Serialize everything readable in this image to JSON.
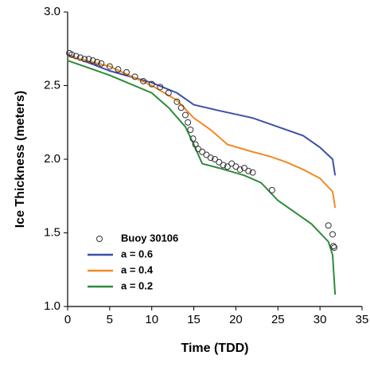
{
  "chart_data": {
    "type": "line",
    "x_label": "Time (TDD)",
    "y_label": "Ice Thickness (meters)",
    "xlim": [
      0,
      35
    ],
    "ylim": [
      1.0,
      3.0
    ],
    "xticks": [
      0,
      5,
      10,
      15,
      20,
      25,
      30,
      35
    ],
    "yticks": [
      {
        "value": 1.0,
        "label": "1.0"
      },
      {
        "value": 1.5,
        "label": "1.5"
      },
      {
        "value": 2.0,
        "label": "2.0"
      },
      {
        "value": 2.5,
        "label": "2.5"
      },
      {
        "value": 3.0,
        "label": "3.0"
      }
    ],
    "legend": "lower left",
    "series": [
      {
        "name": "Buoy 30106",
        "style": "scatter",
        "color": "#333333",
        "x": [
          0.2,
          0.5,
          1,
          1.5,
          2,
          2.5,
          3,
          3.5,
          4,
          5,
          6,
          7,
          8,
          9,
          10,
          11,
          12,
          13,
          13.5,
          14,
          14.3,
          14.6,
          14.9,
          15.2,
          15.5,
          16,
          16.5,
          17,
          17.5,
          18,
          18.5,
          19,
          19.5,
          20,
          20.5,
          21,
          21.5,
          22,
          24.3,
          31,
          31.5,
          31.6,
          31.7
        ],
        "values": [
          2.72,
          2.71,
          2.7,
          2.69,
          2.68,
          2.68,
          2.67,
          2.66,
          2.65,
          2.63,
          2.61,
          2.59,
          2.56,
          2.53,
          2.51,
          2.49,
          2.45,
          2.39,
          2.35,
          2.3,
          2.25,
          2.2,
          2.14,
          2.1,
          2.07,
          2.05,
          2.03,
          2.01,
          2.0,
          1.98,
          1.96,
          1.95,
          1.97,
          1.95,
          1.93,
          1.94,
          1.92,
          1.91,
          1.79,
          1.55,
          1.49,
          1.41,
          1.4
        ]
      },
      {
        "name": "a = 0.6",
        "style": "line",
        "color": "#3f4fa5",
        "x": [
          0,
          5,
          10,
          13,
          15,
          18,
          22,
          25,
          28,
          30,
          31.5,
          31.8
        ],
        "values": [
          2.71,
          2.6,
          2.52,
          2.45,
          2.37,
          2.33,
          2.28,
          2.22,
          2.16,
          2.08,
          2.0,
          1.89
        ]
      },
      {
        "name": "a = 0.4",
        "style": "line",
        "color": "#f08a24",
        "x": [
          0,
          5,
          10,
          13,
          15,
          17,
          19,
          22,
          24,
          26,
          28,
          30,
          31.5,
          31.8
        ],
        "values": [
          2.7,
          2.63,
          2.5,
          2.4,
          2.28,
          2.2,
          2.1,
          2.05,
          2.02,
          1.98,
          1.93,
          1.87,
          1.78,
          1.67
        ]
      },
      {
        "name": "a = 0.2",
        "style": "line",
        "color": "#2e8b3a",
        "x": [
          0,
          5,
          10,
          12,
          14,
          15,
          16,
          18,
          21,
          23,
          25,
          27,
          29,
          31,
          31.5,
          31.8
        ],
        "values": [
          2.67,
          2.57,
          2.45,
          2.35,
          2.22,
          2.1,
          1.97,
          1.94,
          1.89,
          1.84,
          1.72,
          1.64,
          1.56,
          1.44,
          1.35,
          1.08
        ]
      }
    ]
  }
}
